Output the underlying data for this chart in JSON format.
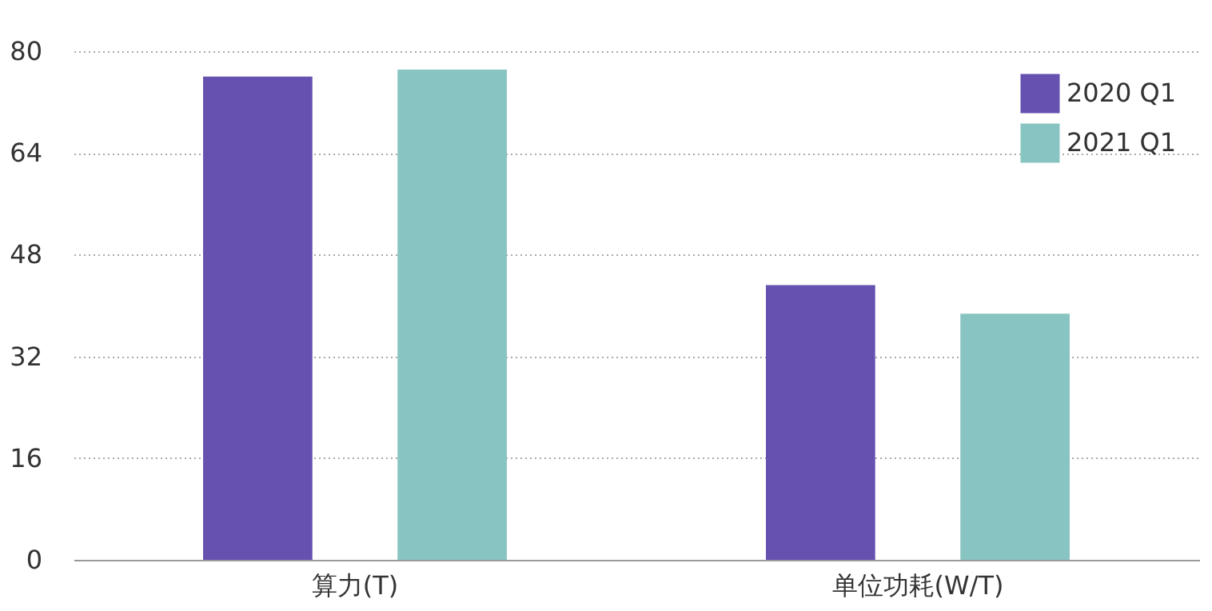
{
  "chart_data": {
    "type": "bar",
    "categories": [
      "算力(T)",
      "单位功耗(W/T)"
    ],
    "series": [
      {
        "name": "2020 Q1",
        "color": "#6650b0",
        "values": [
          76,
          43.2
        ]
      },
      {
        "name": "2021 Q1",
        "color": "#88c4c2",
        "values": [
          77.1,
          38.7
        ]
      }
    ],
    "ylim": [
      0,
      80
    ],
    "yticks": [
      0,
      16,
      32,
      48,
      64,
      80
    ],
    "grid": "y",
    "legend": "top right"
  }
}
